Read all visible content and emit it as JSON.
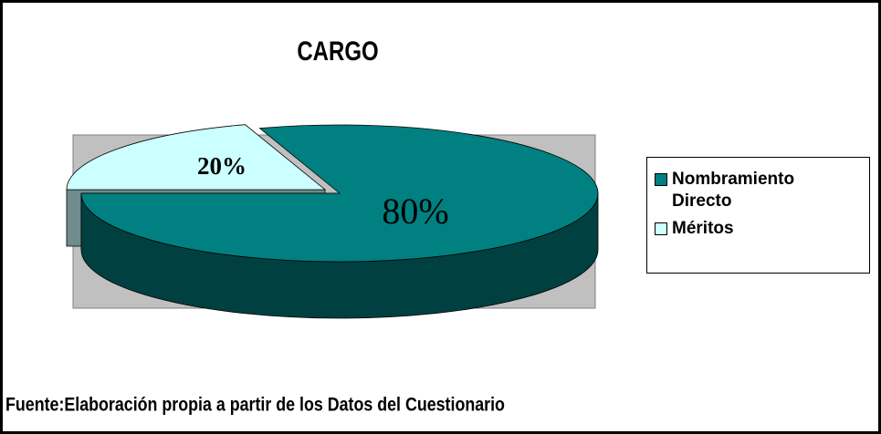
{
  "chart_data": {
    "type": "pie",
    "title": "CARGO",
    "categories": [
      "Nombramiento Directo",
      "Méritos"
    ],
    "values": [
      80,
      20
    ],
    "value_labels": [
      "80%",
      "20%"
    ],
    "colors": [
      "#008080",
      "#ccffff"
    ],
    "source": "Fuente:Elaboración propia a partir de los Datos del Cuestionario"
  }
}
